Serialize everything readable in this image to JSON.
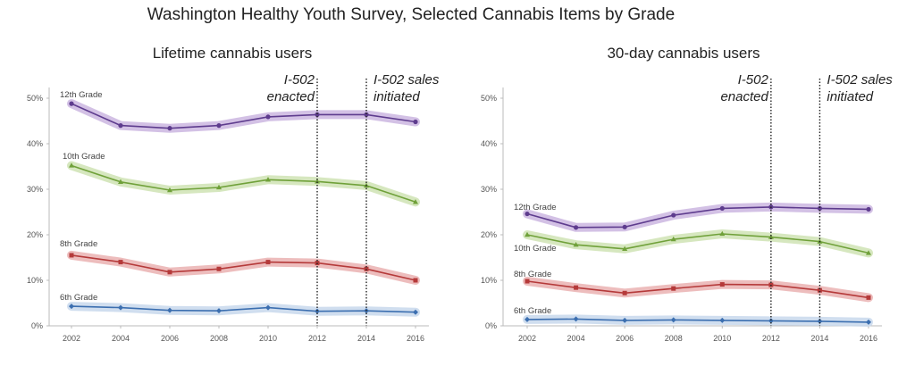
{
  "title": "Washington Healthy Youth Survey, Selected Cannabis Items by Grade",
  "chart_data": [
    {
      "type": "line",
      "title": "Lifetime cannabis users",
      "x": [
        2002,
        2004,
        2006,
        2008,
        2010,
        2012,
        2014,
        2016
      ],
      "x_tick_labels": [
        "2002",
        "2004",
        "2006",
        "2008",
        "2010",
        "2012",
        "2014",
        "2016"
      ],
      "y_tick_labels": [
        "0%",
        "10%",
        "20%",
        "30%",
        "40%",
        "50%"
      ],
      "ylim": [
        0,
        50
      ],
      "grid": false,
      "annotations": [
        {
          "x": 2012,
          "line1": "I-502",
          "line2": "enacted"
        },
        {
          "x": 2014,
          "line1": "I-502 sales",
          "line2": "initiated"
        }
      ],
      "series": [
        {
          "name": "12th Grade",
          "values": [
            48.8,
            44.0,
            43.4,
            44.0,
            45.9,
            46.4,
            46.4,
            44.8
          ],
          "color": "#5e3c8e",
          "band": "#cbb6e0",
          "marker": "circle"
        },
        {
          "name": "10th Grade",
          "values": [
            35.2,
            31.6,
            29.8,
            30.4,
            32.1,
            31.7,
            30.8,
            27.2
          ],
          "color": "#70a13a",
          "band": "#cfe3b4",
          "marker": "triangle"
        },
        {
          "name": "8th Grade",
          "values": [
            15.5,
            14.0,
            11.8,
            12.5,
            14.0,
            13.8,
            12.5,
            10.0
          ],
          "color": "#b53a3a",
          "band": "#eab2b2",
          "marker": "square"
        },
        {
          "name": "6th Grade",
          "values": [
            4.3,
            4.0,
            3.4,
            3.3,
            4.0,
            3.2,
            3.3,
            3.0
          ],
          "color": "#3c6fb0",
          "band": "#c8d8ec",
          "marker": "diamond"
        }
      ]
    },
    {
      "type": "line",
      "title": "30-day cannabis users",
      "x": [
        2002,
        2004,
        2006,
        2008,
        2010,
        2012,
        2014,
        2016
      ],
      "x_tick_labels": [
        "2002",
        "2004",
        "2006",
        "2008",
        "2010",
        "2012",
        "2014",
        "2016"
      ],
      "y_tick_labels": [
        "0%",
        "10%",
        "20%",
        "30%",
        "40%",
        "50%"
      ],
      "ylim": [
        0,
        50
      ],
      "grid": false,
      "annotations": [
        {
          "x": 2012,
          "line1": "I-502",
          "line2": "enacted"
        },
        {
          "x": 2014,
          "line1": "I-502 sales",
          "line2": "initiated"
        }
      ],
      "series": [
        {
          "name": "12th Grade",
          "values": [
            24.6,
            21.6,
            21.7,
            24.3,
            25.8,
            26.1,
            25.8,
            25.6
          ],
          "color": "#5e3c8e",
          "band": "#cbb6e0",
          "marker": "circle"
        },
        {
          "name": "10th Grade",
          "values": [
            20.0,
            17.8,
            16.9,
            19.0,
            20.2,
            19.5,
            18.5,
            16.0
          ],
          "color": "#70a13a",
          "band": "#cfe3b4",
          "marker": "triangle"
        },
        {
          "name": "8th Grade",
          "values": [
            9.8,
            8.4,
            7.2,
            8.2,
            9.1,
            9.0,
            7.8,
            6.2
          ],
          "color": "#b53a3a",
          "band": "#eab2b2",
          "marker": "square"
        },
        {
          "name": "6th Grade",
          "values": [
            1.4,
            1.5,
            1.2,
            1.3,
            1.2,
            1.1,
            1.0,
            0.8
          ],
          "color": "#3c6fb0",
          "band": "#c8d8ec",
          "marker": "diamond"
        }
      ]
    }
  ]
}
